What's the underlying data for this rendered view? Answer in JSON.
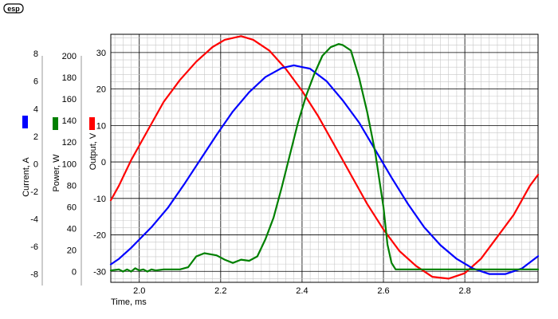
{
  "logo": {
    "text": "esp"
  },
  "chart_data": {
    "type": "line",
    "title": "",
    "xlabel": "Time, ms",
    "xlim": [
      1.93,
      2.98
    ],
    "x_ticks": [
      "2.0",
      "2.2",
      "2.4",
      "2.6",
      "2.8"
    ],
    "x_tick_values": [
      2.0,
      2.2,
      2.4,
      2.6,
      2.8
    ],
    "grid": true,
    "axes": [
      {
        "id": "current",
        "label": "Current, A",
        "color": "#0000ff",
        "ylim": [
          -8.6,
          9.4
        ],
        "ticks": [
          "8",
          "6",
          "4",
          "2",
          "0",
          "-2",
          "-4",
          "-6",
          "-8"
        ],
        "tick_values": [
          8,
          6,
          4,
          2,
          0,
          -2,
          -4,
          -6,
          -8
        ]
      },
      {
        "id": "power",
        "label": "Power, W",
        "color": "#008000",
        "ylim": [
          -10,
          220
        ],
        "ticks": [
          "200",
          "180",
          "160",
          "140",
          "120",
          "100",
          "80",
          "60",
          "40",
          "20",
          "0"
        ],
        "tick_values": [
          200,
          180,
          160,
          140,
          120,
          100,
          80,
          60,
          40,
          20,
          0
        ]
      },
      {
        "id": "output",
        "label": "Output, V",
        "color": "#ff0000",
        "ylim": [
          -33,
          35
        ],
        "ticks": [
          "30",
          "20",
          "10",
          "0",
          "-10",
          "-20",
          "-30"
        ],
        "tick_values": [
          30,
          20,
          10,
          0,
          -10,
          -20,
          -30
        ]
      }
    ],
    "series": [
      {
        "axis": "output",
        "color": "#ff0000",
        "x": [
          1.93,
          1.95,
          1.98,
          2.0,
          2.03,
          2.06,
          2.1,
          2.14,
          2.18,
          2.21,
          2.25,
          2.28,
          2.32,
          2.36,
          2.4,
          2.44,
          2.48,
          2.52,
          2.56,
          2.6,
          2.64,
          2.68,
          2.72,
          2.76,
          2.8,
          2.84,
          2.88,
          2.92,
          2.96,
          2.98
        ],
        "y": [
          -10.5,
          -6.5,
          0.5,
          4.5,
          10.5,
          16.5,
          22.5,
          27.5,
          31.5,
          33.5,
          34.5,
          33.5,
          30.5,
          25.5,
          19.5,
          12.5,
          4.5,
          -3.5,
          -11.5,
          -18.5,
          -24.5,
          -28.5,
          -31.5,
          -32.0,
          -30.5,
          -26.5,
          -20.5,
          -14.5,
          -6.5,
          -3.5
        ]
      },
      {
        "axis": "current",
        "color": "#0000ff",
        "x": [
          1.93,
          1.95,
          1.98,
          2.0,
          2.03,
          2.07,
          2.11,
          2.15,
          2.19,
          2.23,
          2.27,
          2.31,
          2.35,
          2.38,
          2.42,
          2.46,
          2.5,
          2.54,
          2.58,
          2.62,
          2.66,
          2.7,
          2.74,
          2.78,
          2.82,
          2.86,
          2.9,
          2.94,
          2.98
        ],
        "y": [
          -7.3,
          -6.9,
          -6.1,
          -5.5,
          -4.6,
          -3.2,
          -1.5,
          0.3,
          2.1,
          3.8,
          5.2,
          6.3,
          6.95,
          7.15,
          6.9,
          6.0,
          4.6,
          3.0,
          1.0,
          -1.0,
          -2.9,
          -4.6,
          -5.9,
          -6.9,
          -7.6,
          -8.0,
          -8.0,
          -7.6,
          -6.7
        ]
      },
      {
        "axis": "power",
        "color": "#008000",
        "x": [
          1.93,
          1.95,
          1.96,
          1.97,
          1.98,
          1.99,
          2.0,
          2.01,
          2.02,
          2.03,
          2.04,
          2.06,
          2.1,
          2.12,
          2.14,
          2.16,
          2.19,
          2.21,
          2.23,
          2.25,
          2.27,
          2.29,
          2.31,
          2.33,
          2.35,
          2.37,
          2.39,
          2.41,
          2.43,
          2.45,
          2.47,
          2.49,
          2.5,
          2.52,
          2.54,
          2.56,
          2.58,
          2.6,
          2.61,
          2.62,
          2.63,
          2.66,
          2.7,
          2.8,
          2.9,
          2.98
        ],
        "y": [
          1,
          2,
          0,
          2,
          0,
          3,
          1,
          2,
          0,
          2,
          1,
          2,
          2,
          4,
          14,
          17,
          15,
          11,
          8,
          11,
          10,
          14,
          30,
          50,
          78,
          108,
          138,
          163,
          183,
          200,
          208,
          211,
          210,
          205,
          180,
          148,
          110,
          60,
          25,
          8,
          2,
          2,
          2,
          2,
          2,
          2
        ]
      }
    ]
  }
}
